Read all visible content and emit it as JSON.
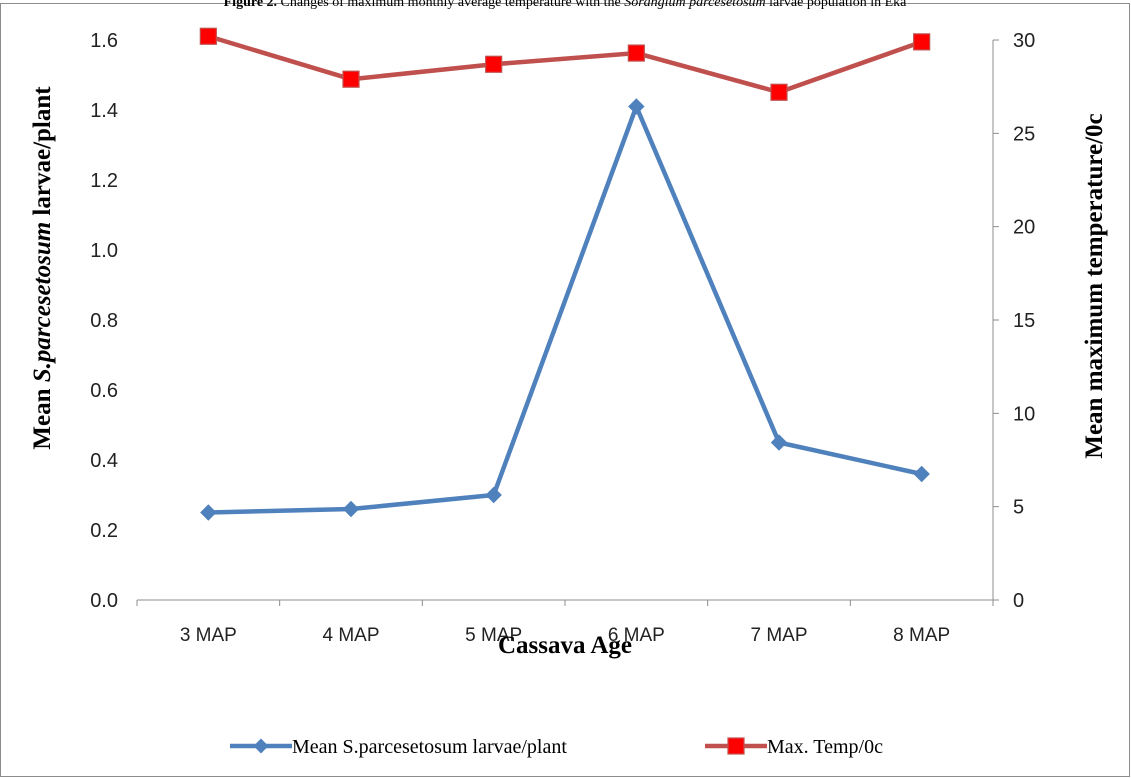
{
  "caption": {
    "prefix": "Figure 2.",
    "text_before": " Changes of maximum monthly average temperature with the ",
    "italic": "Sorangium parcesetosum",
    "text_after": " larvae population in Eka"
  },
  "chart_data": {
    "type": "line",
    "categories": [
      "3 MAP",
      "4 MAP",
      "5 MAP",
      "6 MAP",
      "7 MAP",
      "8 MAP"
    ],
    "xlabel": "Cassava Age",
    "ylabel": {
      "before": "Mean ",
      "italic": "S.parcesetosum",
      "after": " larvae/plant"
    },
    "y2label": "Mean maximum temperature/0c",
    "ylim": [
      0,
      1.6
    ],
    "y2lim": [
      0,
      30
    ],
    "yticks": [
      "0.0",
      "0.2",
      "0.4",
      "0.6",
      "0.8",
      "1.0",
      "1.2",
      "1.4",
      "1.6"
    ],
    "y2ticks": [
      "0",
      "5",
      "10",
      "15",
      "20",
      "25",
      "30"
    ],
    "legend_position": "bottom",
    "grid": false,
    "series": [
      {
        "name": "Mean S.parcesetosum larvae/plant",
        "axis": "left",
        "color": "#4f81bd",
        "marker": "diamond",
        "values": [
          0.25,
          0.26,
          0.3,
          1.41,
          0.45,
          0.36
        ]
      },
      {
        "name": "Max. Temp/0c",
        "axis": "right",
        "color": "#c0504d",
        "marker": "square",
        "marker_color": "#ff0000",
        "values": [
          30.2,
          27.9,
          28.7,
          29.3,
          27.2,
          29.9
        ]
      }
    ]
  }
}
